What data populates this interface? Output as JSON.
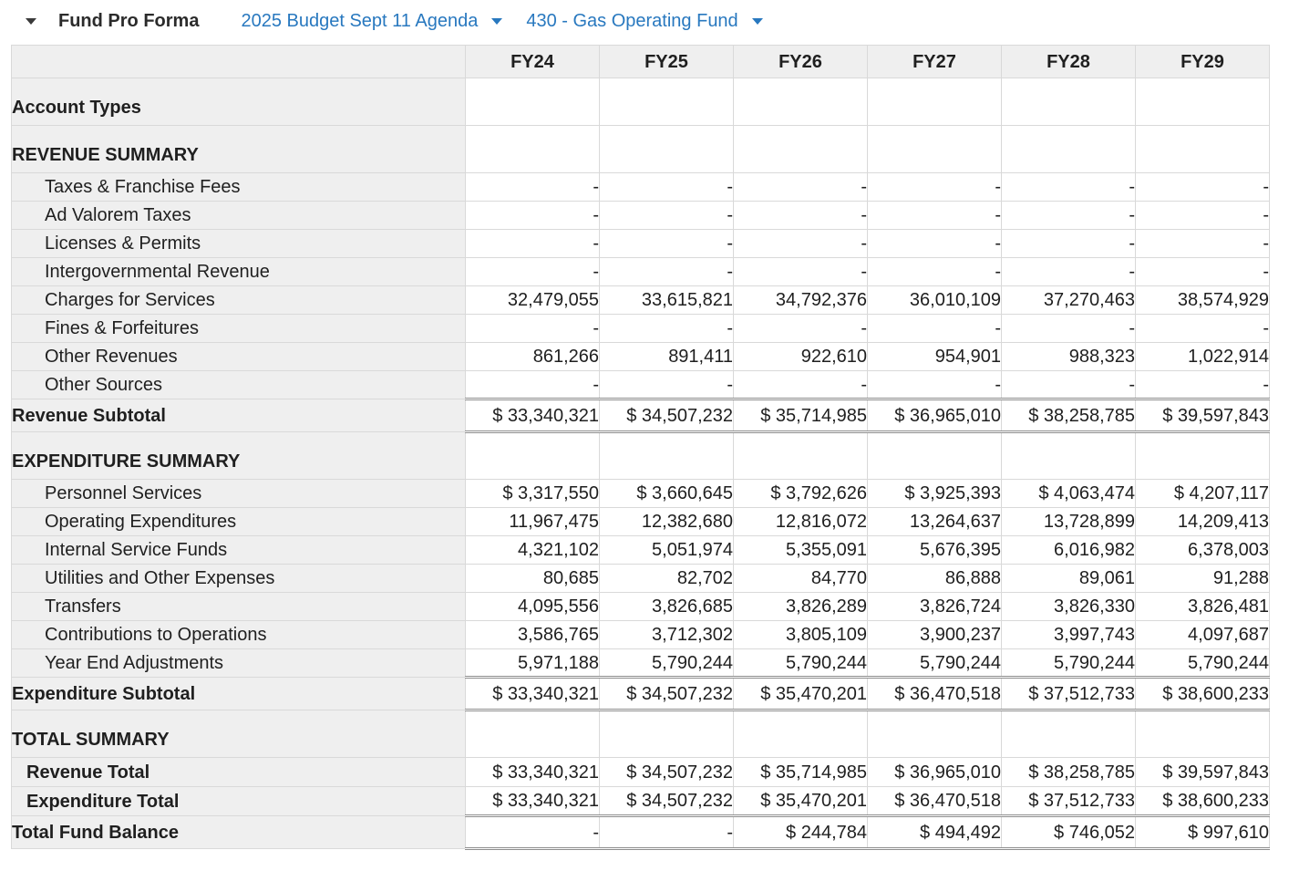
{
  "colors": {
    "link_blue": "#2878bf",
    "label_column_bg": "#efefef",
    "grid_line": "#d9d9d9",
    "double_rule": "#8d8d8d"
  },
  "header": {
    "collapse_icon": "caret-down",
    "title": "Fund Pro Forma",
    "budget_dropdown": {
      "label": "2025 Budget Sept 11 Agenda",
      "icon": "caret-down"
    },
    "fund_dropdown": {
      "label": "430 - Gas Operating Fund",
      "icon": "caret-down"
    }
  },
  "table": {
    "columns": [
      "FY24",
      "FY25",
      "FY26",
      "FY27",
      "FY28",
      "FY29"
    ],
    "rows": [
      {
        "type": "section",
        "label": "Account Types",
        "values": [
          "",
          "",
          "",
          "",
          "",
          ""
        ]
      },
      {
        "type": "section",
        "label": "REVENUE SUMMARY",
        "values": [
          "",
          "",
          "",
          "",
          "",
          ""
        ]
      },
      {
        "type": "detail",
        "label": "Taxes & Franchise Fees",
        "values": [
          "-",
          "-",
          "-",
          "-",
          "-",
          "-"
        ]
      },
      {
        "type": "detail",
        "label": "Ad Valorem Taxes",
        "values": [
          "-",
          "-",
          "-",
          "-",
          "-",
          "-"
        ]
      },
      {
        "type": "detail",
        "label": "Licenses & Permits",
        "values": [
          "-",
          "-",
          "-",
          "-",
          "-",
          "-"
        ]
      },
      {
        "type": "detail",
        "label": "Intergovernmental Revenue",
        "values": [
          "-",
          "-",
          "-",
          "-",
          "-",
          "-"
        ]
      },
      {
        "type": "detail",
        "label": "Charges for Services",
        "values": [
          "32,479,055",
          "33,615,821",
          "34,792,376",
          "36,010,109",
          "37,270,463",
          "38,574,929"
        ]
      },
      {
        "type": "detail",
        "label": "Fines & Forfeitures",
        "values": [
          "-",
          "-",
          "-",
          "-",
          "-",
          "-"
        ]
      },
      {
        "type": "detail",
        "label": "Other Revenues",
        "values": [
          "861,266",
          "891,411",
          "922,610",
          "954,901",
          "988,323",
          "1,022,914"
        ]
      },
      {
        "type": "detail",
        "label": "Other Sources",
        "values": [
          "-",
          "-",
          "-",
          "-",
          "-",
          "-"
        ]
      },
      {
        "type": "subtotal",
        "label": "Revenue Subtotal",
        "values": [
          "$ 33,340,321",
          "$ 34,507,232",
          "$ 35,714,985",
          "$ 36,965,010",
          "$ 38,258,785",
          "$ 39,597,843"
        ]
      },
      {
        "type": "section",
        "label": "EXPENDITURE SUMMARY",
        "values": [
          "",
          "",
          "",
          "",
          "",
          ""
        ]
      },
      {
        "type": "detail",
        "label": "Personnel Services",
        "values": [
          "$ 3,317,550",
          "$ 3,660,645",
          "$ 3,792,626",
          "$ 3,925,393",
          "$ 4,063,474",
          "$ 4,207,117"
        ]
      },
      {
        "type": "detail",
        "label": "Operating Expenditures",
        "values": [
          "11,967,475",
          "12,382,680",
          "12,816,072",
          "13,264,637",
          "13,728,899",
          "14,209,413"
        ]
      },
      {
        "type": "detail",
        "label": "Internal Service Funds",
        "values": [
          "4,321,102",
          "5,051,974",
          "5,355,091",
          "5,676,395",
          "6,016,982",
          "6,378,003"
        ]
      },
      {
        "type": "detail",
        "label": "Utilities and Other Expenses",
        "values": [
          "80,685",
          "82,702",
          "84,770",
          "86,888",
          "89,061",
          "91,288"
        ]
      },
      {
        "type": "detail",
        "label": "Transfers",
        "values": [
          "4,095,556",
          "3,826,685",
          "3,826,289",
          "3,826,724",
          "3,826,330",
          "3,826,481"
        ]
      },
      {
        "type": "detail",
        "label": "Contributions to Operations",
        "values": [
          "3,586,765",
          "3,712,302",
          "3,805,109",
          "3,900,237",
          "3,997,743",
          "4,097,687"
        ]
      },
      {
        "type": "detail",
        "label": "Year End Adjustments",
        "values": [
          "5,971,188",
          "5,790,244",
          "5,790,244",
          "5,790,244",
          "5,790,244",
          "5,790,244"
        ]
      },
      {
        "type": "subtotal",
        "label": "Expenditure Subtotal",
        "values": [
          "$ 33,340,321",
          "$ 34,507,232",
          "$ 35,470,201",
          "$ 36,470,518",
          "$ 37,512,733",
          "$ 38,600,233"
        ]
      },
      {
        "type": "section",
        "label": "TOTAL SUMMARY",
        "values": [
          "",
          "",
          "",
          "",
          "",
          ""
        ]
      },
      {
        "type": "total",
        "label": "Revenue Total",
        "values": [
          "$ 33,340,321",
          "$ 34,507,232",
          "$ 35,714,985",
          "$ 36,965,010",
          "$ 38,258,785",
          "$ 39,597,843"
        ]
      },
      {
        "type": "total",
        "label": "Expenditure Total",
        "values": [
          "$ 33,340,321",
          "$ 34,507,232",
          "$ 35,470,201",
          "$ 36,470,518",
          "$ 37,512,733",
          "$ 38,600,233"
        ]
      },
      {
        "type": "grand",
        "label": "Total Fund Balance",
        "values": [
          "-",
          "-",
          "$ 244,784",
          "$ 494,492",
          "$ 746,052",
          "$ 997,610"
        ]
      }
    ]
  }
}
